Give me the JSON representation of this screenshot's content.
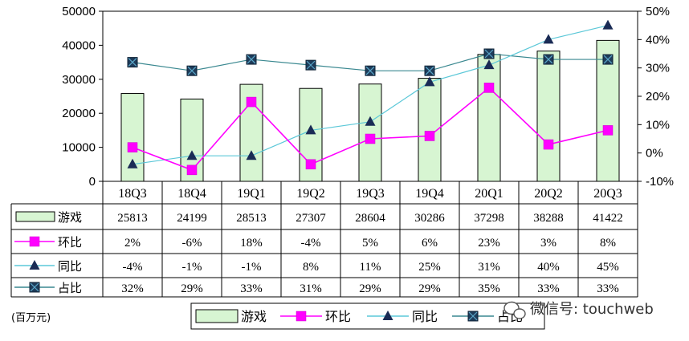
{
  "chart_data": {
    "type": "bar",
    "categories": [
      "18Q3",
      "18Q4",
      "19Q1",
      "19Q2",
      "19Q3",
      "19Q4",
      "20Q1",
      "20Q2",
      "20Q3"
    ],
    "left_axis": {
      "min": 0,
      "max": 50000,
      "step": 10000,
      "ticks": [
        "0",
        "10000",
        "20000",
        "30000",
        "40000",
        "50000"
      ]
    },
    "right_axis": {
      "min": -10,
      "max": 50,
      "step": 10,
      "ticks": [
        "-10%",
        "0%",
        "10%",
        "20%",
        "30%",
        "40%",
        "50%"
      ]
    },
    "series": [
      {
        "name": "游戏",
        "kind": "bar",
        "axis": "left",
        "color": "#d7f5d2",
        "edge": "#000000",
        "values": [
          25813,
          24199,
          28513,
          27307,
          28604,
          30286,
          37298,
          38288,
          41422
        ],
        "labels": [
          "25813",
          "24199",
          "28513",
          "27307",
          "28604",
          "30286",
          "37298",
          "38288",
          "41422"
        ]
      },
      {
        "name": "环比",
        "kind": "line",
        "axis": "right",
        "color": "#ff00ff",
        "marker": "square-magenta",
        "values": [
          2,
          -6,
          18,
          -4,
          5,
          6,
          23,
          3,
          8
        ],
        "labels": [
          "2%",
          "-6%",
          "18%",
          "-4%",
          "5%",
          "6%",
          "23%",
          "3%",
          "8%"
        ]
      },
      {
        "name": "同比",
        "kind": "line",
        "axis": "right",
        "color": "#5cc8d8",
        "marker": "triangle-navy",
        "values": [
          -4,
          -1,
          -1,
          8,
          11,
          25,
          31,
          40,
          45
        ],
        "labels": [
          "-4%",
          "-1%",
          "-1%",
          "8%",
          "11%",
          "25%",
          "31%",
          "40%",
          "45%"
        ]
      },
      {
        "name": "占比",
        "kind": "line",
        "axis": "right",
        "color": "#3a8890",
        "marker": "square-x-navy",
        "values": [
          32,
          29,
          33,
          31,
          29,
          29,
          35,
          33,
          33
        ],
        "labels": [
          "32%",
          "29%",
          "33%",
          "31%",
          "29%",
          "29%",
          "35%",
          "33%",
          "33%"
        ]
      }
    ],
    "unit_label": "(百万元)",
    "legend": [
      "游戏",
      "环比",
      "同比",
      "占比"
    ]
  },
  "watermark": {
    "text": "微信号: touchweb",
    "icon": "wechat-logo-icon"
  }
}
